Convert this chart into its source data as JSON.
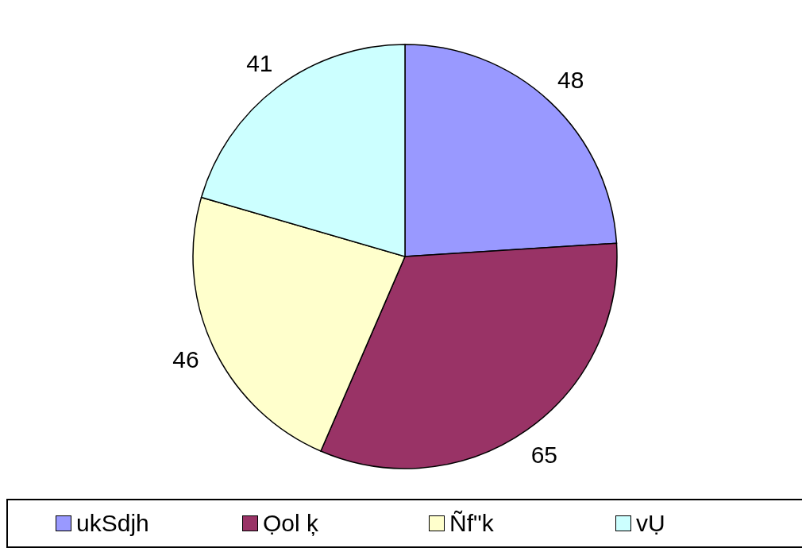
{
  "chart_data": {
    "type": "pie",
    "categories": [
      "ukSdjh",
      "Ọol ķ",
      "Ñf\"k",
      "vỤ"
    ],
    "values": [
      48,
      65,
      46,
      41
    ],
    "colors": [
      "#9999ff",
      "#993366",
      "#ffffcc",
      "#ccffff"
    ],
    "data_labels": true,
    "legend": "bottom"
  }
}
